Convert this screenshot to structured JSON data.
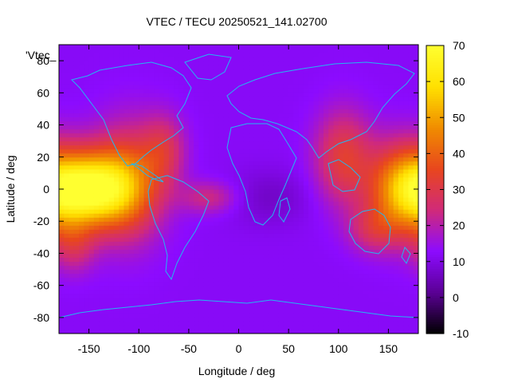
{
  "chart_data": [
    {
      "type": "heatmap",
      "title": "VTEC / TECU 20250521_141.02700",
      "xlabel": "Longitude / deg",
      "ylabel": "Latitude / deg",
      "xlim": [
        -180,
        180
      ],
      "ylim": [
        -90,
        90
      ],
      "xticks": [
        -150,
        -100,
        -50,
        0,
        50,
        100,
        150
      ],
      "yticks": [
        -80,
        -60,
        -40,
        -20,
        0,
        20,
        40,
        60,
        80
      ],
      "legend_label": "'Vtec_",
      "legend_position": "top-left",
      "colorbar": {
        "min": -10,
        "max": 70,
        "ticks": [
          70,
          60,
          50,
          40,
          30,
          20,
          10,
          0,
          -10
        ]
      },
      "colormap": [
        "#000000",
        "#5a0094",
        "#8c0bff",
        "#d02a7a",
        "#e8461e",
        "#f08c00",
        "#ffe000",
        "#ffff30"
      ],
      "coastline_color": "#22b8f0",
      "field_model": {
        "background": 12,
        "features": [
          {
            "lon": -150,
            "lat": 0,
            "sdlon": 32,
            "sdlat": 16,
            "value": 55
          },
          {
            "lon": -110,
            "lat": 5,
            "sdlon": 25,
            "sdlat": 25,
            "value": 22
          },
          {
            "lon": -75,
            "lat": 25,
            "sdlon": 15,
            "sdlat": 15,
            "value": 14
          },
          {
            "lon": -165,
            "lat": -35,
            "sdlon": 15,
            "sdlat": 12,
            "value": 12
          },
          {
            "lon": 165,
            "lat": 0,
            "sdlon": 25,
            "sdlat": 20,
            "value": 32
          },
          {
            "lon": 105,
            "lat": 20,
            "sdlon": 20,
            "sdlat": 20,
            "value": 20
          },
          {
            "lon": 135,
            "lat": -25,
            "sdlon": 18,
            "sdlat": 10,
            "value": 12
          },
          {
            "lon": -30,
            "lat": -5,
            "sdlon": 20,
            "sdlat": 7,
            "value": 12
          },
          {
            "lon": 30,
            "lat": -5,
            "sdlon": 30,
            "sdlat": 12,
            "value": -5
          }
        ]
      }
    }
  ]
}
